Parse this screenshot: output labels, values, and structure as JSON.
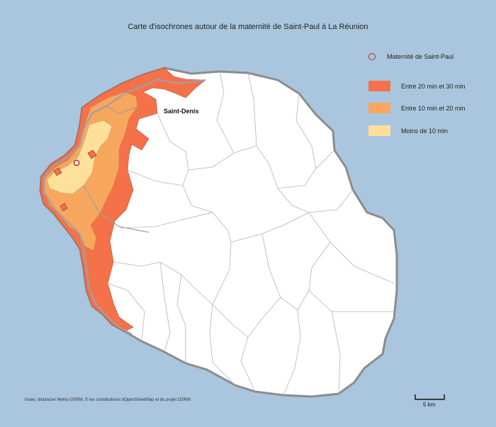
{
  "title": "Carte d'isochrones autour de la maternité de Saint-Paul à La Réunion",
  "legend": {
    "marker": {
      "label": "Maternité de Saint-Paul",
      "color": "#c0282d"
    },
    "classes": [
      {
        "label": "Entre 20 min et 30 min",
        "color": "#f4714a"
      },
      {
        "label": "Entre 10 min et 20 min",
        "color": "#f8a75f"
      },
      {
        "label": "Moins de 10 min",
        "color": "#fde19a"
      }
    ]
  },
  "place_label": "Saint-Denis",
  "source": "Insee, distancier Metric-OSRM, © les contributeurs dOpenStreetMap et du projet OSRM",
  "scale_bar": {
    "label": "5 km"
  },
  "colors": {
    "sea": "#a9c6de",
    "land": "#ffffff",
    "coast": "#8c8c8c",
    "road": "#a0a0a0"
  }
}
